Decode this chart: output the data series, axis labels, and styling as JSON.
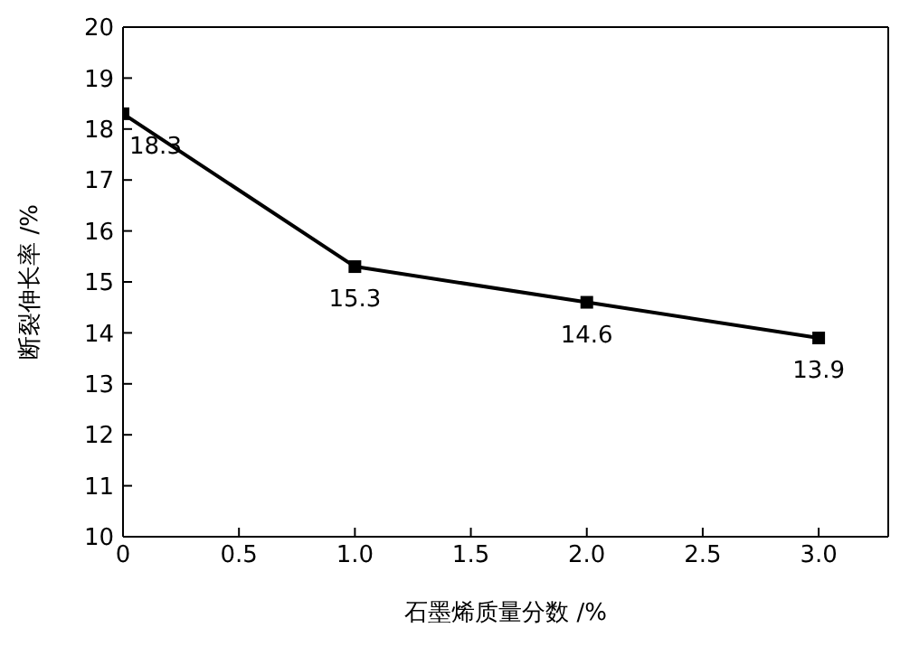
{
  "chart_data": {
    "type": "line",
    "xlabel": "石墨烯质量分数 /%",
    "ylabel": "断裂伸长率 /%",
    "x": [
      0,
      1,
      2,
      3
    ],
    "series": [
      {
        "color": "#000000",
        "values": [
          18.3,
          15.3,
          14.6,
          13.9
        ]
      }
    ],
    "xlim": [
      0,
      3.3
    ],
    "xticks": [
      0,
      0.5,
      {
        "value": 1,
        "label": "1.0"
      },
      1.5,
      {
        "value": 2,
        "label": "2.0"
      },
      2.5,
      {
        "value": 3,
        "label": "3.0"
      }
    ],
    "ylim": [
      10,
      20
    ],
    "yticks": [
      10,
      11,
      12,
      13,
      14,
      15,
      16,
      17,
      18,
      19,
      20
    ],
    "data_labels": true,
    "marker": "square",
    "line_style": "solid"
  }
}
